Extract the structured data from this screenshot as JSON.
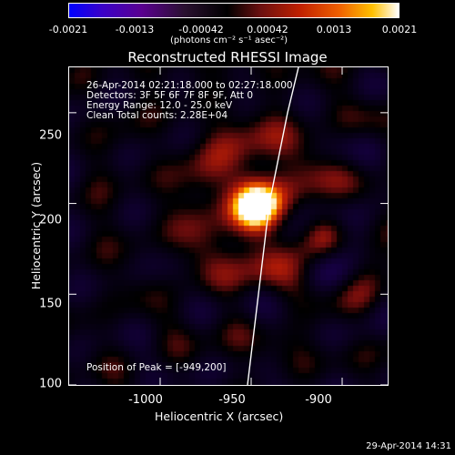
{
  "colorbar": {
    "ticks": [
      "-0.0021",
      "-0.0013",
      "-0.00042",
      "0.00042",
      "0.0013",
      "0.0021"
    ],
    "units": "(photons cm⁻² s⁻¹ asec⁻²)"
  },
  "title": "Reconstructed RHESSI Image",
  "info": {
    "time_range": "26-Apr-2014 02:21:18.000 to 02:27:18.000",
    "detectors": "Detectors: 3F 5F 6F 7F 8F 9F, Att 0",
    "energy": "Energy Range: 12.0 - 25.0 keV",
    "clean": "Clean     Total counts: 2.28E+04",
    "peak": "Position of Peak = [-949,200]"
  },
  "chart_data": {
    "type": "heatmap",
    "title": "Reconstructed RHESSI Image",
    "xlabel": "Heliocentric X (arcsec)",
    "ylabel": "Heliocentric Y (arcsec)",
    "xlim": [
      -1050,
      -875
    ],
    "ylim": [
      100,
      275
    ],
    "xticks": [
      "-1000",
      "-950",
      "-900"
    ],
    "yticks": [
      "250",
      "200",
      "150",
      "100"
    ],
    "xtick_values": [
      -1000,
      -950,
      -900
    ],
    "ytick_values": [
      250,
      200,
      150,
      100
    ],
    "colorbar_range": [
      -0.0021,
      0.0021
    ],
    "peak": {
      "x": -949,
      "y": 200
    },
    "limb_curve": [
      [
        -952,
        100
      ],
      [
        -946,
        150
      ],
      [
        -940,
        200
      ],
      [
        -930,
        250
      ],
      [
        -924,
        275
      ]
    ]
  },
  "timestamp": "29-Apr-2014 14:31"
}
